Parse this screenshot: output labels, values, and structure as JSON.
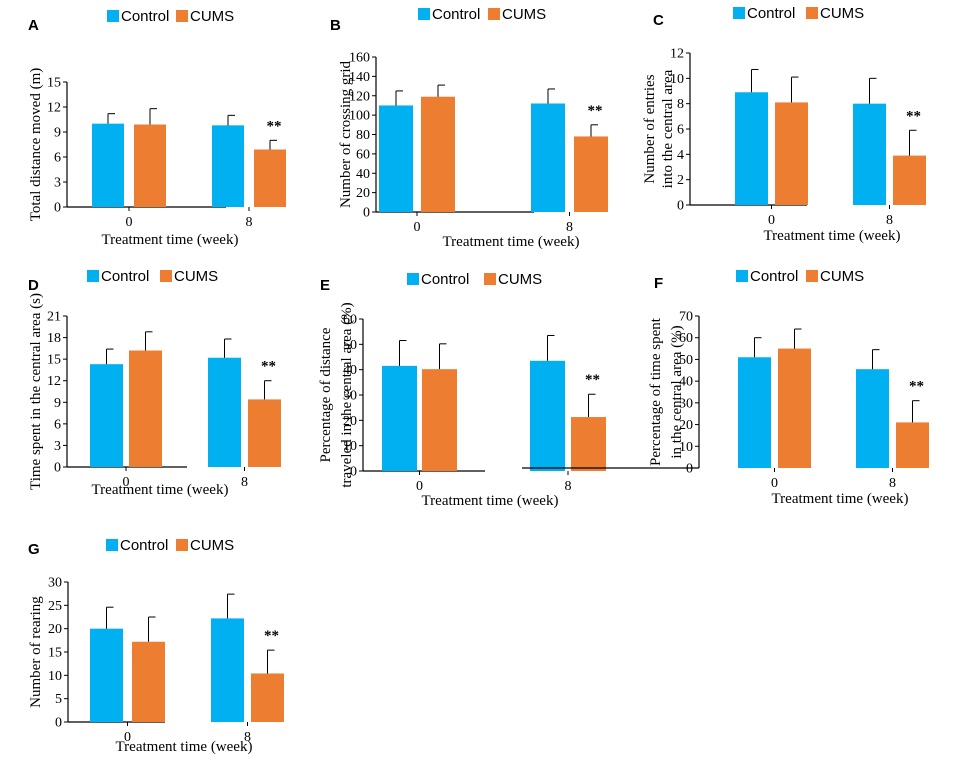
{
  "colors": {
    "control": "#00b0f0",
    "cums": "#ed7d31",
    "axis": "#000000"
  },
  "chart_data": [
    {
      "panel": "A",
      "type": "bar",
      "categories": [
        "0",
        "8"
      ],
      "series": [
        {
          "name": "Control",
          "values": [
            10.0,
            9.8
          ],
          "errors": [
            1.2,
            1.2
          ]
        },
        {
          "name": "CUMS",
          "values": [
            9.9,
            6.9
          ],
          "errors": [
            1.9,
            1.1
          ]
        }
      ],
      "significance": [
        null,
        "**"
      ],
      "xlabel": "Treatment time (week)",
      "ylabel": [
        "Total distance moved (m)"
      ],
      "ylim": [
        0,
        15
      ],
      "yticks": [
        0,
        3,
        6,
        9,
        12,
        15
      ],
      "legend": "top"
    },
    {
      "panel": "B",
      "type": "bar",
      "categories": [
        "0",
        "8"
      ],
      "series": [
        {
          "name": "Control",
          "values": [
            110,
            112
          ],
          "errors": [
            15,
            15
          ]
        },
        {
          "name": "CUMS",
          "values": [
            119,
            78
          ],
          "errors": [
            12,
            12
          ]
        }
      ],
      "significance": [
        null,
        "**"
      ],
      "xlabel": "Treatment time (week)",
      "ylabel": [
        "Number of crossing grid"
      ],
      "ylim": [
        0,
        160
      ],
      "yticks": [
        0,
        20,
        40,
        60,
        80,
        100,
        120,
        140,
        160
      ],
      "legend": "top"
    },
    {
      "panel": "C",
      "type": "bar",
      "categories": [
        "0",
        "8"
      ],
      "series": [
        {
          "name": "Control",
          "values": [
            8.9,
            8.0
          ],
          "errors": [
            1.8,
            2.0
          ]
        },
        {
          "name": "CUMS",
          "values": [
            8.1,
            3.9
          ],
          "errors": [
            2.0,
            2.0
          ]
        }
      ],
      "significance": [
        null,
        "**"
      ],
      "xlabel": "Treatment time (week)",
      "ylabel": [
        "Number of entries",
        "into the central area"
      ],
      "ylim": [
        0,
        12
      ],
      "yticks": [
        0,
        2,
        4,
        6,
        8,
        10,
        12
      ],
      "legend": "top"
    },
    {
      "panel": "D",
      "type": "bar",
      "categories": [
        "0",
        "8"
      ],
      "series": [
        {
          "name": "Control",
          "values": [
            14.3,
            15.2
          ],
          "errors": [
            2.1,
            2.6
          ]
        },
        {
          "name": "CUMS",
          "values": [
            16.2,
            9.4
          ],
          "errors": [
            2.6,
            2.6
          ]
        }
      ],
      "significance": [
        null,
        "**"
      ],
      "xlabel": "Treatment time (week)",
      "ylabel": [
        "Time spent in the central area (s)"
      ],
      "ylim": [
        0,
        21
      ],
      "yticks": [
        0,
        3,
        6,
        9,
        12,
        15,
        18,
        21
      ],
      "legend": "top"
    },
    {
      "panel": "E",
      "type": "bar",
      "categories": [
        "0",
        "8"
      ],
      "series": [
        {
          "name": "Control",
          "values": [
            41.5,
            43.5
          ],
          "errors": [
            10,
            10
          ]
        },
        {
          "name": "CUMS",
          "values": [
            40.2,
            21.3
          ],
          "errors": [
            10,
            9
          ]
        }
      ],
      "significance": [
        null,
        "**"
      ],
      "xlabel": "Treatment time (week)",
      "ylabel": [
        "Percentage of distance",
        "traveled in the central area (%)"
      ],
      "ylim": [
        0,
        60
      ],
      "yticks": [
        0,
        10,
        20,
        30,
        40,
        50,
        60
      ],
      "legend": "top"
    },
    {
      "panel": "F",
      "type": "bar",
      "categories": [
        "0",
        "8"
      ],
      "series": [
        {
          "name": "Control",
          "values": [
            51.0,
            45.5
          ],
          "errors": [
            9,
            9
          ]
        },
        {
          "name": "CUMS",
          "values": [
            55.0,
            21.0
          ],
          "errors": [
            9,
            10
          ]
        }
      ],
      "significance": [
        null,
        "**"
      ],
      "xlabel": "Treatment time (week)",
      "ylabel": [
        "Percentage of time spent",
        "in the central area (%)"
      ],
      "ylim": [
        0,
        70
      ],
      "yticks": [
        0,
        10,
        20,
        30,
        40,
        50,
        60,
        70
      ],
      "legend": "top"
    },
    {
      "panel": "G",
      "type": "bar",
      "categories": [
        "0",
        "8"
      ],
      "series": [
        {
          "name": "Control",
          "values": [
            20.0,
            22.2
          ],
          "errors": [
            4.6,
            5.2
          ]
        },
        {
          "name": "CUMS",
          "values": [
            17.2,
            10.4
          ],
          "errors": [
            5.3,
            5.0
          ]
        }
      ],
      "significance": [
        null,
        "**"
      ],
      "xlabel": "Treatment time (week)",
      "ylabel": [
        "Number of rearing"
      ],
      "ylim": [
        0,
        30
      ],
      "yticks": [
        0,
        5,
        10,
        15,
        20,
        25,
        30
      ],
      "legend": "top"
    }
  ]
}
